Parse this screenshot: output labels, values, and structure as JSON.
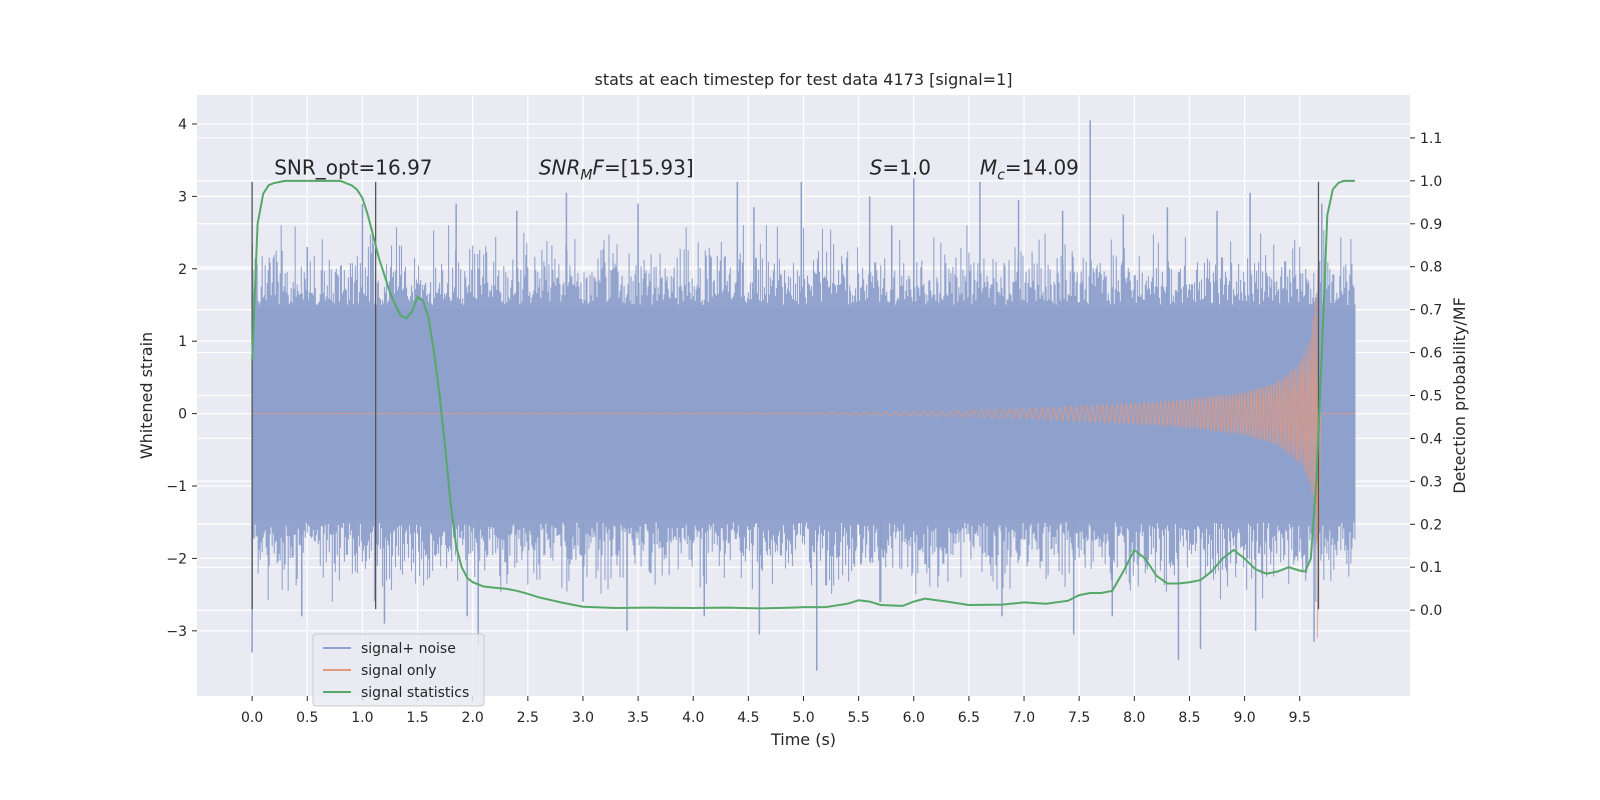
{
  "chart_data": {
    "type": "line",
    "title": "stats at each timestep for test data 4173 [signal=1]",
    "xlabel": "Time (s)",
    "ylabel": "Whitened strain",
    "ylabel_right": "Detection probability/MF",
    "xlim": [
      -0.5,
      10.5
    ],
    "ylim": [
      -3.9,
      4.4
    ],
    "ylim_right": [
      -0.2,
      1.2
    ],
    "grid": true,
    "legend_position": "bottom-left",
    "x_ticks": [
      "0.0",
      "0.5",
      "1.0",
      "1.5",
      "2.0",
      "2.5",
      "3.0",
      "3.5",
      "4.0",
      "4.5",
      "5.0",
      "5.5",
      "6.0",
      "6.5",
      "7.0",
      "7.5",
      "8.0",
      "8.5",
      "9.0",
      "9.5"
    ],
    "y_ticks": [
      "−3",
      "−2",
      "−1",
      "0",
      "1",
      "2",
      "3",
      "4"
    ],
    "y_ticks_right": [
      "0.0",
      "0.1",
      "0.2",
      "0.3",
      "0.4",
      "0.5",
      "0.6",
      "0.7",
      "0.8",
      "0.9",
      "1.0",
      "1.1"
    ],
    "annotations": [
      {
        "text": "SNR_opt=16.97",
        "x": 0.2,
        "y": 3.3
      },
      {
        "text": "SNR",
        "sub": "M",
        "suffix": "F=[15.93]",
        "italic": true,
        "x": 2.6,
        "y": 3.3
      },
      {
        "text": "S",
        "suffix": "=1.0",
        "italic": true,
        "x": 5.6,
        "y": 3.3
      },
      {
        "text": "M",
        "sub": "c",
        "suffix": "=14.09",
        "italic": true,
        "x": 6.6,
        "y": 3.3
      }
    ],
    "vlines": [
      {
        "x": 0.0,
        "y0": -2.7,
        "y1": 3.2
      },
      {
        "x": 1.12,
        "y0": -2.7,
        "y1": 3.2
      },
      {
        "x": 9.67,
        "y0": -2.7,
        "y1": 3.2
      }
    ],
    "series": [
      {
        "name": "signal+ noise",
        "color": "#8da0cb",
        "x_range": [
          0.0,
          10.0
        ],
        "envelope": {
          "upper_typical": 2.0,
          "lower_typical": -2.0,
          "max": 4.05,
          "min": -3.55
        },
        "peaks_up": [
          [
            0.0,
            2.35
          ],
          [
            0.5,
            2.3
          ],
          [
            1.0,
            2.9
          ],
          [
            1.85,
            2.9
          ],
          [
            2.4,
            2.8
          ],
          [
            2.85,
            3.05
          ],
          [
            3.5,
            2.9
          ],
          [
            4.4,
            3.2
          ],
          [
            4.55,
            2.85
          ],
          [
            4.98,
            3.2
          ],
          [
            5.6,
            3.0
          ],
          [
            5.8,
            2.6
          ],
          [
            6.0,
            3.25
          ],
          [
            6.6,
            3.2
          ],
          [
            6.95,
            2.95
          ],
          [
            7.35,
            2.8
          ],
          [
            7.6,
            4.05
          ],
          [
            7.9,
            2.75
          ],
          [
            8.3,
            2.85
          ],
          [
            8.75,
            2.8
          ],
          [
            9.05,
            3.05
          ],
          [
            9.7,
            2.9
          ]
        ],
        "peaks_down": [
          [
            0.0,
            -3.3
          ],
          [
            0.45,
            -2.8
          ],
          [
            1.2,
            -2.9
          ],
          [
            1.95,
            -2.8
          ],
          [
            2.05,
            -3.2
          ],
          [
            3.0,
            -2.6
          ],
          [
            3.4,
            -3.0
          ],
          [
            4.1,
            -2.8
          ],
          [
            4.6,
            -3.05
          ],
          [
            5.12,
            -3.55
          ],
          [
            5.7,
            -2.6
          ],
          [
            6.8,
            -2.8
          ],
          [
            7.45,
            -3.05
          ],
          [
            7.8,
            -2.8
          ],
          [
            8.4,
            -3.4
          ],
          [
            8.6,
            -3.25
          ],
          [
            9.1,
            -3.0
          ],
          [
            9.63,
            -3.15
          ]
        ]
      },
      {
        "name": "signal only",
        "color": "#e5997d",
        "x_range": [
          0.0,
          10.0
        ],
        "chirp_end": 9.67,
        "amplitude_points": [
          [
            0.0,
            0.0
          ],
          [
            5.0,
            0.01
          ],
          [
            6.0,
            0.03
          ],
          [
            7.0,
            0.07
          ],
          [
            8.0,
            0.14
          ],
          [
            8.5,
            0.2
          ],
          [
            9.0,
            0.3
          ],
          [
            9.3,
            0.45
          ],
          [
            9.5,
            0.7
          ],
          [
            9.6,
            1.05
          ],
          [
            9.65,
            1.7
          ],
          [
            9.67,
            2.3
          ]
        ],
        "final_trough": -3.1
      },
      {
        "name": "signal statistics",
        "color": "#55a868",
        "axis": "right",
        "x": [
          0.0,
          0.05,
          0.1,
          0.15,
          0.2,
          0.3,
          0.4,
          0.5,
          0.6,
          0.7,
          0.8,
          0.9,
          0.95,
          1.0,
          1.05,
          1.1,
          1.15,
          1.2,
          1.25,
          1.3,
          1.35,
          1.4,
          1.45,
          1.5,
          1.55,
          1.6,
          1.65,
          1.7,
          1.75,
          1.8,
          1.85,
          1.9,
          1.95,
          2.0,
          2.1,
          2.2,
          2.3,
          2.4,
          2.5,
          2.6,
          2.8,
          3.0,
          3.3,
          3.6,
          4.0,
          4.3,
          4.6,
          4.9,
          5.0,
          5.2,
          5.4,
          5.5,
          5.6,
          5.7,
          5.9,
          6.0,
          6.1,
          6.3,
          6.5,
          6.8,
          7.0,
          7.2,
          7.4,
          7.5,
          7.6,
          7.7,
          7.8,
          7.9,
          8.0,
          8.1,
          8.2,
          8.3,
          8.4,
          8.5,
          8.6,
          8.7,
          8.8,
          8.9,
          9.0,
          9.1,
          9.2,
          9.3,
          9.4,
          9.5,
          9.55,
          9.6,
          9.65,
          9.7,
          9.75,
          9.8,
          9.85,
          9.9,
          10.0
        ],
        "y": [
          0.58,
          0.9,
          0.97,
          0.99,
          0.995,
          1.0,
          1.0,
          1.0,
          1.0,
          1.0,
          1.0,
          0.99,
          0.98,
          0.96,
          0.92,
          0.87,
          0.82,
          0.78,
          0.74,
          0.71,
          0.685,
          0.68,
          0.695,
          0.73,
          0.72,
          0.68,
          0.6,
          0.5,
          0.38,
          0.25,
          0.15,
          0.1,
          0.075,
          0.065,
          0.055,
          0.052,
          0.05,
          0.045,
          0.038,
          0.03,
          0.018,
          0.008,
          0.005,
          0.006,
          0.005,
          0.006,
          0.004,
          0.006,
          0.007,
          0.007,
          0.015,
          0.023,
          0.02,
          0.012,
          0.01,
          0.02,
          0.027,
          0.02,
          0.012,
          0.013,
          0.018,
          0.015,
          0.022,
          0.035,
          0.04,
          0.04,
          0.045,
          0.09,
          0.14,
          0.12,
          0.08,
          0.062,
          0.062,
          0.065,
          0.07,
          0.09,
          0.12,
          0.14,
          0.12,
          0.095,
          0.085,
          0.09,
          0.1,
          0.092,
          0.09,
          0.12,
          0.3,
          0.6,
          0.92,
          0.98,
          0.995,
          1.0,
          1.0
        ]
      }
    ]
  }
}
